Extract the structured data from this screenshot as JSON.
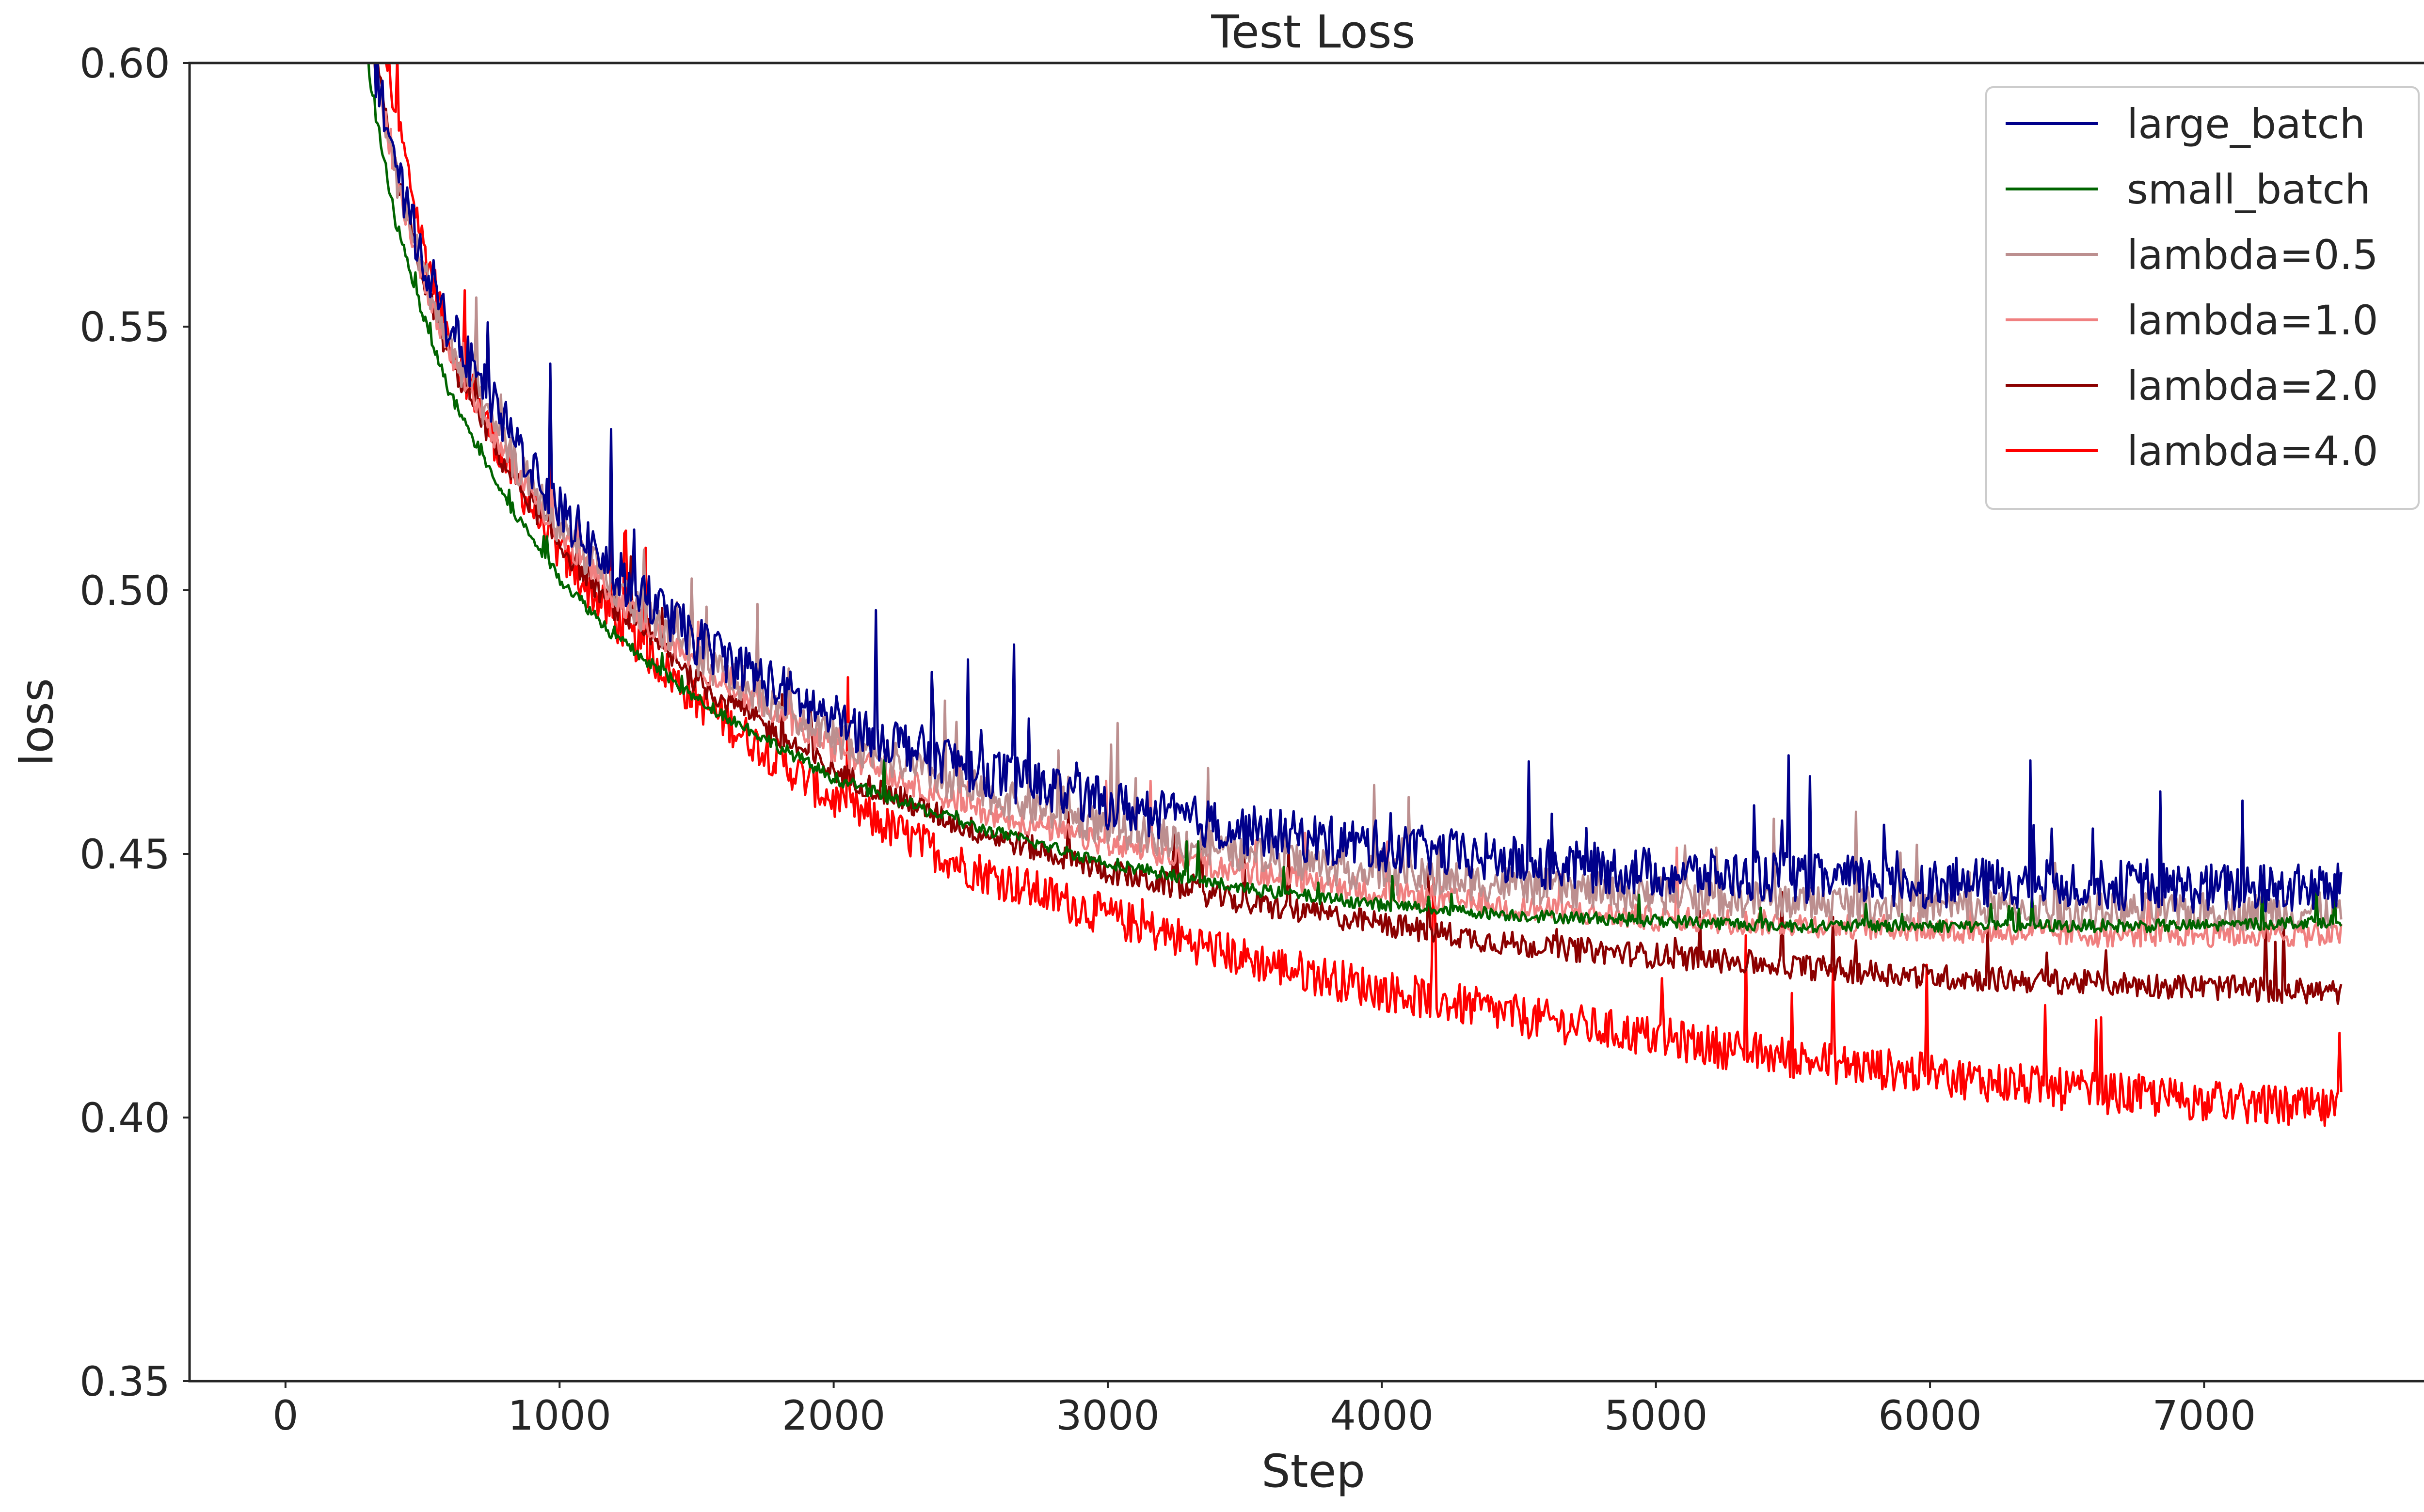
{
  "chart_data": {
    "type": "line",
    "title": "Test Loss",
    "xlabel": "Step",
    "ylabel": "loss",
    "xlim": [
      -350,
      7850
    ],
    "ylim": [
      0.35,
      0.6
    ],
    "xticks": [
      0,
      1000,
      2000,
      3000,
      4000,
      5000,
      6000,
      7000
    ],
    "xtick_labels": [
      "0",
      "1000",
      "2000",
      "3000",
      "4000",
      "5000",
      "6000",
      "7000"
    ],
    "yticks": [
      0.35,
      0.4,
      0.45,
      0.5,
      0.55,
      0.6
    ],
    "ytick_labels": [
      "0.35",
      "0.40",
      "0.45",
      "0.50",
      "0.55",
      "0.60"
    ],
    "grid": false,
    "legend_position": "top-right",
    "x_range": [
      0,
      7500
    ],
    "series": [
      {
        "name": "large_batch",
        "color": "#00008b",
        "x": [
          300,
          400,
          500,
          600,
          800,
          1000,
          1200,
          1500,
          2000,
          2500,
          3000,
          3500,
          4000,
          4500,
          5000,
          5500,
          6000,
          6500,
          7000,
          7500
        ],
        "y": [
          0.605,
          0.578,
          0.562,
          0.548,
          0.53,
          0.514,
          0.502,
          0.489,
          0.474,
          0.465,
          0.458,
          0.453,
          0.45,
          0.447,
          0.445,
          0.444,
          0.443,
          0.443,
          0.442,
          0.442
        ]
      },
      {
        "name": "small_batch",
        "color": "#006400",
        "x": [
          300,
          400,
          500,
          600,
          800,
          1000,
          1200,
          1500,
          2000,
          2500,
          3000,
          3500,
          4000,
          4500,
          5000,
          5500,
          6000,
          6500,
          7000,
          7500
        ],
        "y": [
          0.598,
          0.57,
          0.552,
          0.537,
          0.517,
          0.502,
          0.491,
          0.479,
          0.464,
          0.455,
          0.448,
          0.443,
          0.44,
          0.438,
          0.437,
          0.436,
          0.436,
          0.436,
          0.436,
          0.437
        ]
      },
      {
        "name": "lambda=0.5",
        "color": "#bc8f8f",
        "x": [
          300,
          400,
          500,
          600,
          800,
          1000,
          1200,
          1500,
          2000,
          2500,
          3000,
          3500,
          4000,
          4500,
          5000,
          5500,
          6000,
          6500,
          7000,
          7500
        ],
        "y": [
          0.606,
          0.578,
          0.56,
          0.545,
          0.526,
          0.511,
          0.499,
          0.486,
          0.471,
          0.461,
          0.454,
          0.449,
          0.445,
          0.443,
          0.441,
          0.44,
          0.439,
          0.438,
          0.438,
          0.438
        ]
      },
      {
        "name": "lambda=1.0",
        "color": "#f08080",
        "x": [
          300,
          400,
          500,
          600,
          800,
          1000,
          1200,
          1500,
          2000,
          2500,
          3000,
          3500,
          4000,
          4500,
          5000,
          5500,
          6000,
          6500,
          7000,
          7500
        ],
        "y": [
          0.607,
          0.578,
          0.559,
          0.544,
          0.525,
          0.51,
          0.498,
          0.485,
          0.469,
          0.458,
          0.451,
          0.446,
          0.442,
          0.439,
          0.437,
          0.436,
          0.435,
          0.434,
          0.434,
          0.434
        ]
      },
      {
        "name": "lambda=2.0",
        "color": "#8b0000",
        "x": [
          300,
          400,
          500,
          600,
          800,
          1000,
          1200,
          1500,
          2000,
          2500,
          3000,
          3500,
          4000,
          4500,
          5000,
          5500,
          6000,
          6500,
          7000,
          7500
        ],
        "y": [
          0.608,
          0.579,
          0.559,
          0.543,
          0.523,
          0.508,
          0.496,
          0.482,
          0.465,
          0.454,
          0.446,
          0.44,
          0.436,
          0.432,
          0.43,
          0.428,
          0.426,
          0.425,
          0.424,
          0.423
        ]
      },
      {
        "name": "lambda=4.0",
        "color": "#ff0000",
        "x": [
          300,
          400,
          500,
          600,
          800,
          1000,
          1200,
          1500,
          2000,
          2500,
          3000,
          3500,
          4000,
          4500,
          5000,
          5500,
          6000,
          6500,
          7000,
          7500
        ],
        "y": [
          0.62,
          0.59,
          0.565,
          0.546,
          0.523,
          0.506,
          0.493,
          0.478,
          0.459,
          0.446,
          0.437,
          0.429,
          0.423,
          0.418,
          0.414,
          0.41,
          0.407,
          0.404,
          0.402,
          0.4
        ]
      }
    ]
  }
}
